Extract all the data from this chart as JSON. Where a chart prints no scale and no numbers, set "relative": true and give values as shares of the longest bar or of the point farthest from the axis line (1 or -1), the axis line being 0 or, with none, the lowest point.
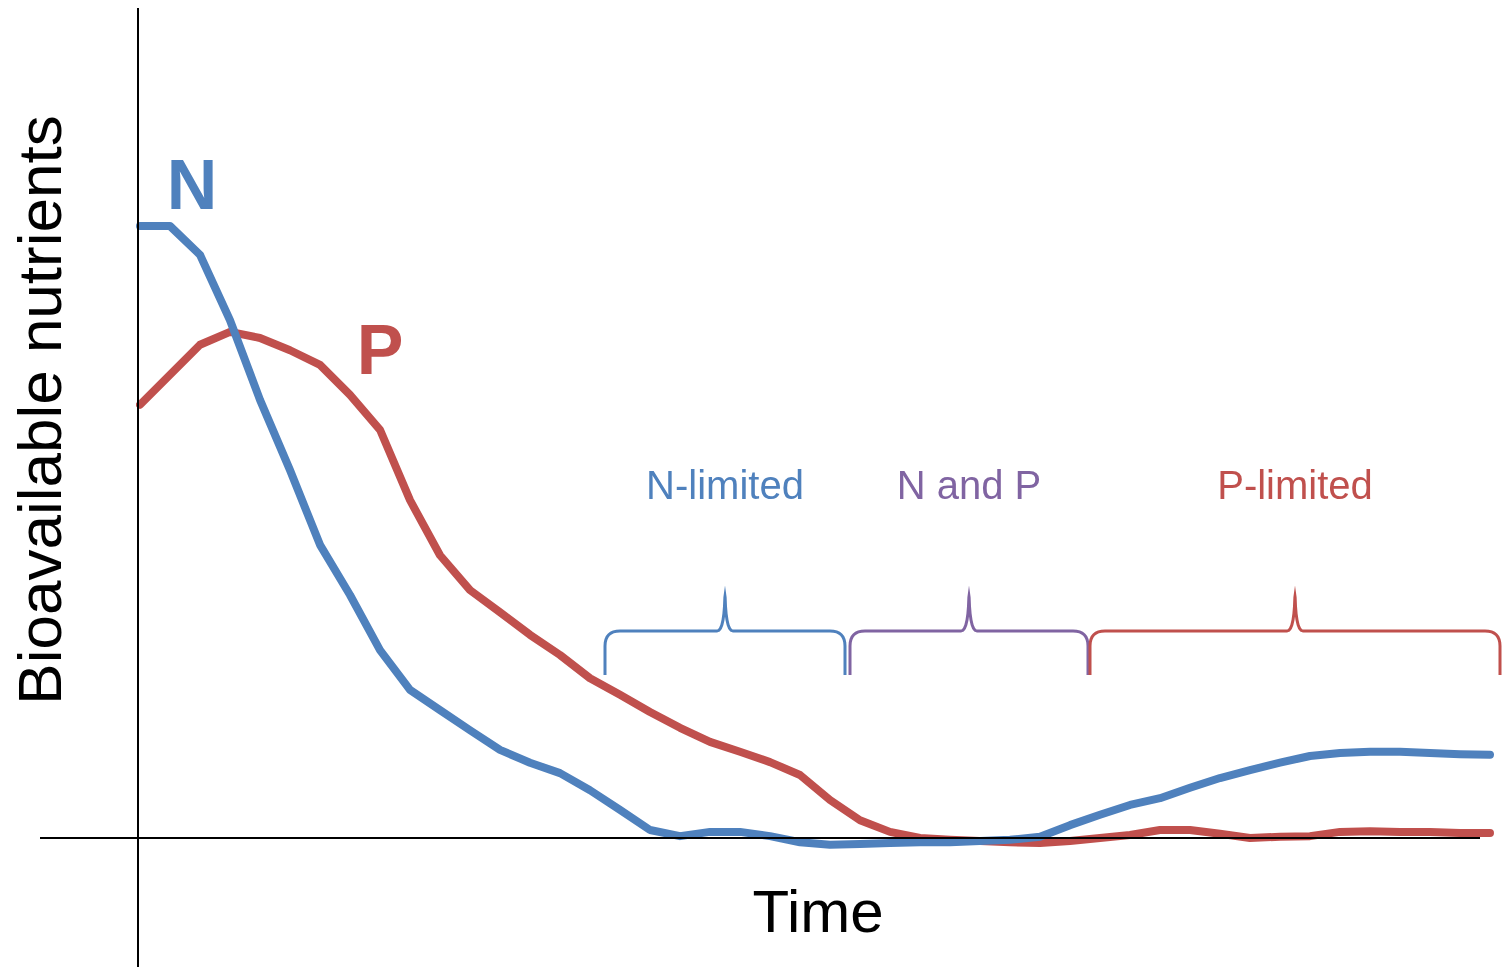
{
  "chart_data": {
    "type": "line",
    "relative": true,
    "xlabel": "Time",
    "ylabel": "Bioavailable nutrients",
    "legend": false,
    "grid": false,
    "marker": "none",
    "line_style": "solid",
    "categories": [
      null,
      null,
      null,
      null,
      null,
      null,
      null,
      null,
      null,
      null,
      null,
      null,
      null,
      null,
      null,
      null,
      null,
      null,
      null,
      null,
      null,
      null,
      null,
      null,
      null,
      null,
      null,
      null,
      null,
      null,
      null,
      null,
      null,
      null,
      null,
      null,
      null,
      null,
      null,
      null,
      null,
      null,
      null,
      null,
      null,
      null
    ],
    "series": [
      {
        "name": "N",
        "color": "#4f81bd",
        "values": [
          1.0,
          1.0,
          0.953,
          0.846,
          0.716,
          0.601,
          0.479,
          0.397,
          0.307,
          0.242,
          0.209,
          0.176,
          0.144,
          0.123,
          0.106,
          0.078,
          0.046,
          0.013,
          0.003,
          0.01,
          0.01,
          0.003,
          -0.007,
          -0.011,
          -0.01,
          -0.008,
          -0.007,
          -0.007,
          -0.005,
          -0.003,
          0.002,
          0.021,
          0.038,
          0.054,
          0.065,
          0.082,
          0.098,
          0.111,
          0.123,
          0.134,
          0.139,
          0.141,
          0.141,
          0.139,
          0.137,
          0.136
        ]
      },
      {
        "name": "P",
        "color": "#c0504d",
        "values": [
          0.708,
          0.757,
          0.806,
          0.827,
          0.817,
          0.797,
          0.773,
          0.724,
          0.667,
          0.552,
          0.462,
          0.405,
          0.369,
          0.332,
          0.299,
          0.261,
          0.234,
          0.206,
          0.18,
          0.157,
          0.141,
          0.124,
          0.103,
          0.062,
          0.029,
          0.01,
          0,
          -0.003,
          -0.005,
          -0.007,
          -0.008,
          -0.005,
          0,
          0.005,
          0.013,
          0.013,
          0.007,
          0,
          0.002,
          0.003,
          0.01,
          0.011,
          0.01,
          0.01,
          0.008,
          0.008
        ]
      }
    ],
    "annotations": [
      "N-limited",
      "N and P",
      "P-limited"
    ]
  }
}
